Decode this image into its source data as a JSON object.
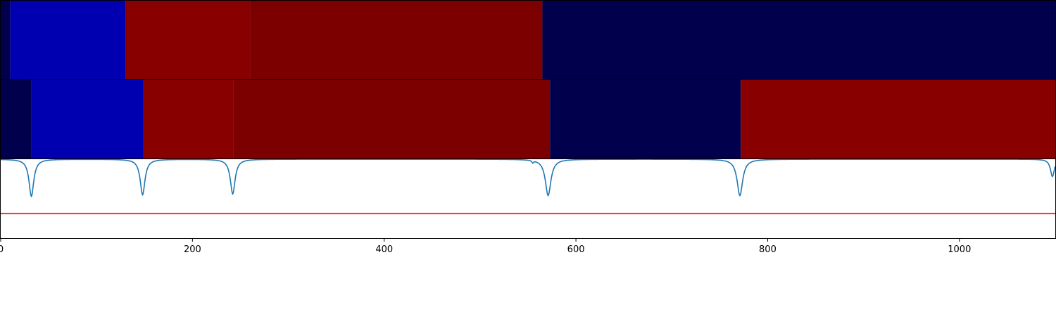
{
  "chart_data": {
    "type": "heatmap",
    "x_range": [
      0,
      1100
    ],
    "x_ticks": [
      "0",
      "200",
      "400",
      "600",
      "800",
      "1000"
    ],
    "x_tick_values": [
      0,
      200,
      400,
      600,
      800,
      1000
    ],
    "colors": {
      "dark_navy": "#00004c",
      "blue": "#0000b0",
      "red": "#880000",
      "dark_red": "#7c0000"
    },
    "segment_tracks": [
      {
        "segments": [
          {
            "start": 0,
            "end": 10,
            "color": "dark_navy"
          },
          {
            "start": 10,
            "end": 130,
            "color": "blue"
          },
          {
            "start": 130,
            "end": 260,
            "color": "red"
          },
          {
            "start": 260,
            "end": 565,
            "color": "dark_red"
          },
          {
            "start": 565,
            "end": 1100,
            "color": "dark_navy"
          }
        ]
      },
      {
        "segments": [
          {
            "start": 0,
            "end": 32,
            "color": "dark_navy"
          },
          {
            "start": 32,
            "end": 149,
            "color": "blue"
          },
          {
            "start": 149,
            "end": 243,
            "color": "red"
          },
          {
            "start": 243,
            "end": 573,
            "color": "dark_red"
          },
          {
            "start": 573,
            "end": 772,
            "color": "dark_navy"
          },
          {
            "start": 772,
            "end": 1100,
            "color": "red"
          }
        ]
      }
    ],
    "line_panel": {
      "ylim": [
        0,
        1
      ],
      "signal": {
        "color": "#1f77b4",
        "baseline": 1.0,
        "dips": [
          {
            "x": 32,
            "depth": 0.47,
            "width": 3
          },
          {
            "x": 148,
            "depth": 0.45,
            "width": 3
          },
          {
            "x": 242,
            "depth": 0.44,
            "width": 3
          },
          {
            "x": 555,
            "depth": 0.03,
            "width": 1
          },
          {
            "x": 571,
            "depth": 0.46,
            "width": 3.5
          },
          {
            "x": 771,
            "depth": 0.46,
            "width": 3.5
          },
          {
            "x": 1097,
            "depth": 0.22,
            "width": 2.5
          }
        ]
      },
      "threshold": {
        "value": 0.31,
        "color": "#ff0000"
      }
    }
  }
}
